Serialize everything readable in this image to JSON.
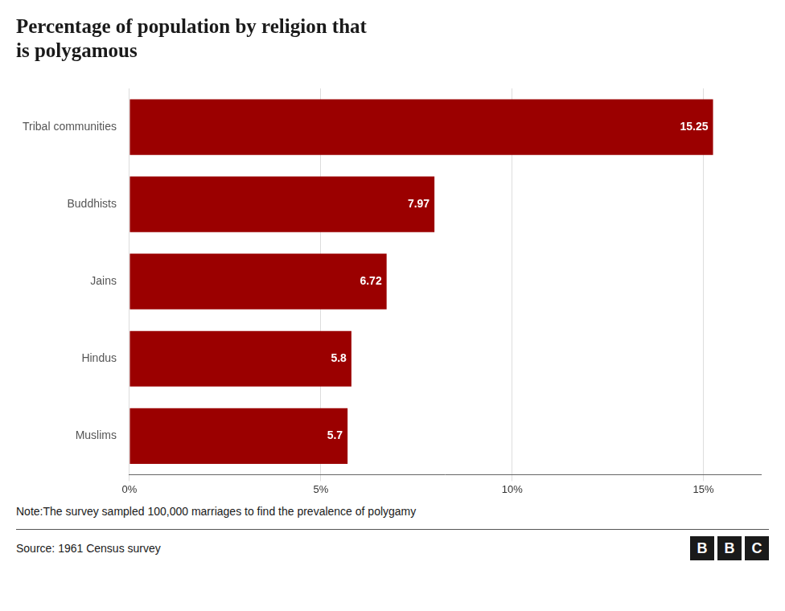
{
  "chart_data": {
    "type": "bar",
    "orientation": "horizontal",
    "title": [
      "Percentage of population by religion that",
      "is polygamous"
    ],
    "categories": [
      "Muslims",
      "Hindus",
      "Jains",
      "Buddhists",
      "Tribal communities"
    ],
    "values": [
      5.7,
      5.8,
      6.72,
      7.97,
      15.25
    ],
    "color": "#9B0000",
    "xlim": [
      0,
      16.5
    ],
    "xticks": [
      {
        "value": 0,
        "label": "0%"
      },
      {
        "value": 5,
        "label": "5%"
      },
      {
        "value": 10,
        "label": "10%"
      },
      {
        "value": 15,
        "label": "15%"
      }
    ],
    "grid": true,
    "data_labels": true,
    "annotations": [
      "Note:The survey sampled 100,000 marriages to find the prevalence of polygamy",
      "Source: 1961 Census survey"
    ],
    "logo": "BBC"
  }
}
